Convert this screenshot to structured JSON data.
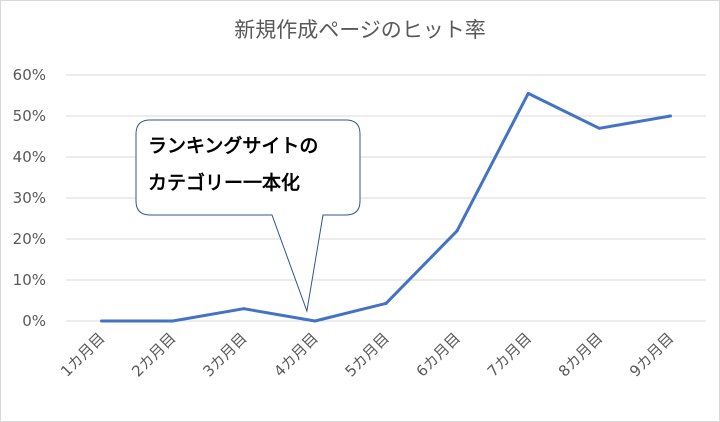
{
  "chart_data": {
    "type": "line",
    "title": "新規作成ページのヒット率",
    "categories": [
      "1カ月目",
      "2カ月目",
      "3カ月目",
      "4カ月目",
      "5カ月目",
      "6カ月目",
      "7カ月目",
      "8カ月目",
      "9カ月目"
    ],
    "series": [
      {
        "values": [
          0.0,
          0.0,
          3.0,
          0.0,
          4.3,
          22.0,
          55.5,
          47.0,
          50.0
        ]
      }
    ],
    "ylim": [
      0,
      60
    ],
    "yticks": [
      "0%",
      "10%",
      "20%",
      "30%",
      "40%",
      "50%",
      "60%"
    ],
    "grid": true,
    "annotation": {
      "lines": [
        "ランキングサイトの",
        "カテゴリー一本化"
      ],
      "points_to_category": "4カ月目"
    }
  },
  "colors": {
    "line": "#4472c4",
    "grid": "#d9d9d9",
    "text": "#595959",
    "callout_border": "#2f5597"
  }
}
